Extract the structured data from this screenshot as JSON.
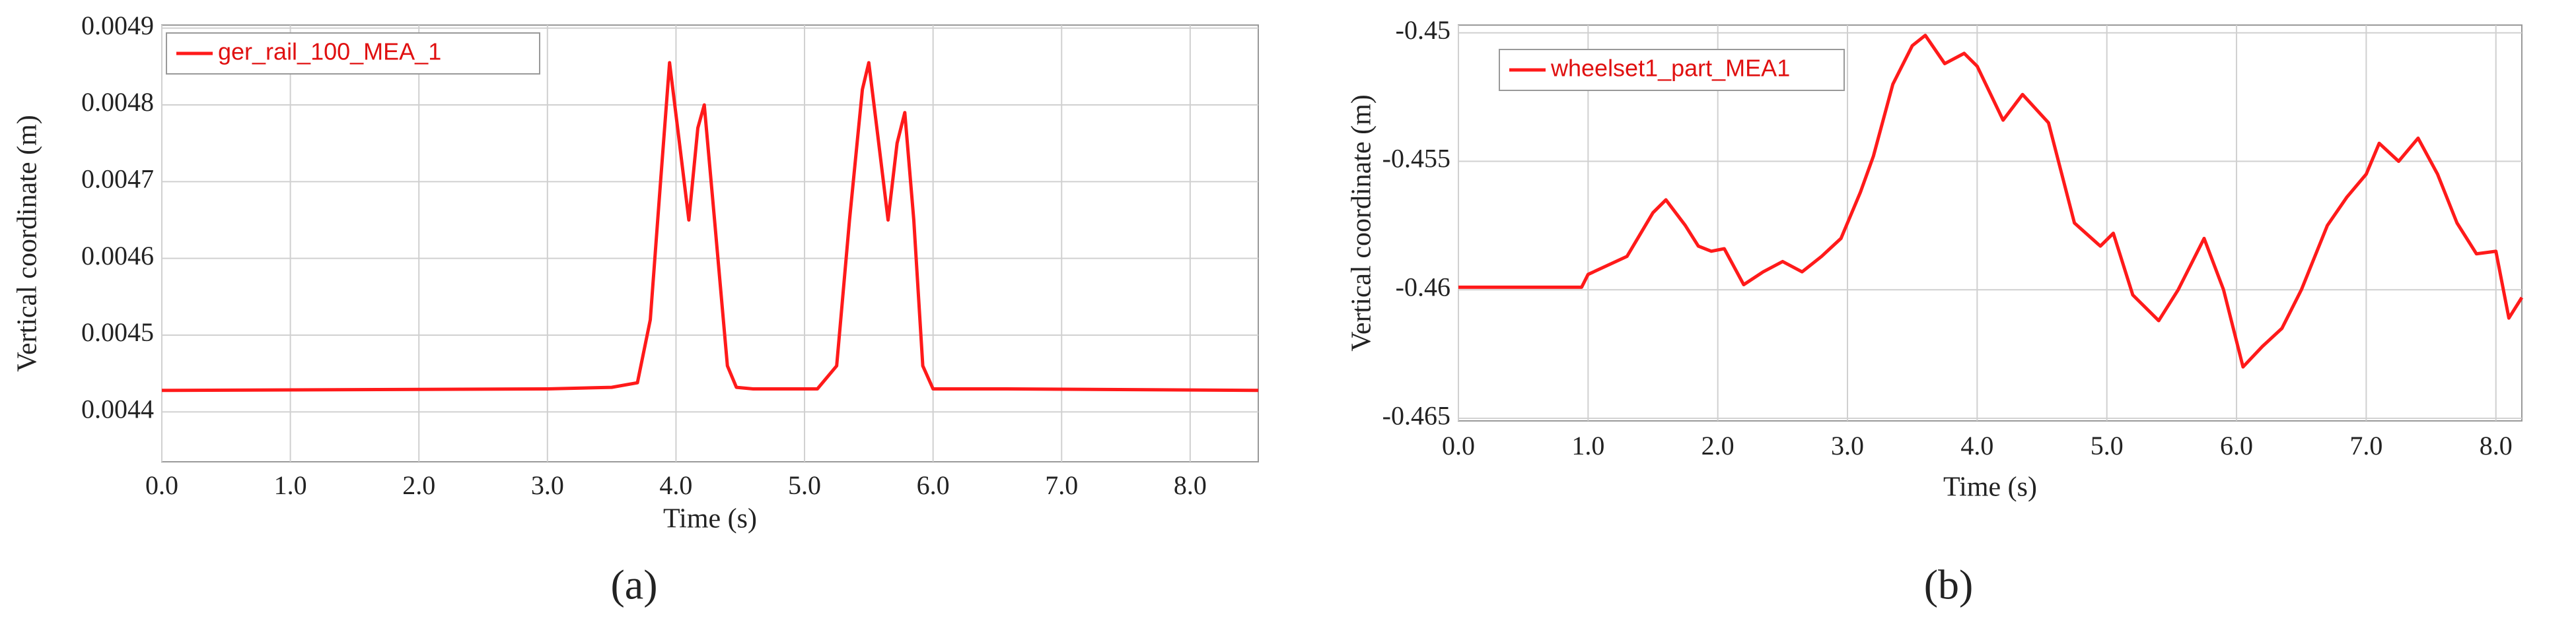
{
  "chart_data": [
    {
      "type": "line",
      "caption": "(a)",
      "x_label": "Time (s)",
      "y_label": "Vertical coordinate (m)",
      "xlim": [
        0,
        8.53
      ],
      "ylim": [
        0.004335,
        0.004904
      ],
      "grid": true,
      "legend": "top-left",
      "xticks": [
        {
          "value": 0,
          "label": "0.0"
        },
        {
          "value": 1,
          "label": "1.0"
        },
        {
          "value": 2,
          "label": "2.0"
        },
        {
          "value": 3,
          "label": "3.0"
        },
        {
          "value": 4,
          "label": "4.0"
        },
        {
          "value": 5,
          "label": "5.0"
        },
        {
          "value": 6,
          "label": "6.0"
        },
        {
          "value": 7,
          "label": "7.0"
        },
        {
          "value": 8,
          "label": "8.0"
        }
      ],
      "yticks": [
        0.0044,
        0.0045,
        0.0046,
        0.0047,
        0.0048,
        0.0049
      ],
      "x": [
        0,
        3.0,
        3.5,
        3.7,
        3.8,
        3.88,
        3.95,
        4.02,
        4.1,
        4.17,
        4.22,
        4.3,
        4.4,
        4.47,
        4.6,
        4.9,
        5.1,
        5.25,
        5.35,
        5.45,
        5.5,
        5.57,
        5.65,
        5.72,
        5.78,
        5.85,
        5.92,
        6.0,
        6.5,
        8.53
      ],
      "series": [
        {
          "name": "ger_rail_100_MEA_1",
          "color": "#ff1a1a",
          "values": [
            0.004428,
            0.00443,
            0.004432,
            0.004438,
            0.00452,
            0.0047,
            0.004855,
            0.00476,
            0.00465,
            0.00477,
            0.0048,
            0.00465,
            0.00446,
            0.004432,
            0.00443,
            0.00443,
            0.00443,
            0.00446,
            0.00465,
            0.00482,
            0.004855,
            0.00476,
            0.00465,
            0.00475,
            0.00479,
            0.00465,
            0.00446,
            0.00443,
            0.00443,
            0.004428
          ]
        }
      ]
    },
    {
      "type": "line",
      "caption": "(b)",
      "x_label": "Time (s)",
      "y_label": "Vertical coordinate (m)",
      "xlim": [
        0,
        8.2
      ],
      "ylim": [
        -0.4651,
        -0.4497
      ],
      "grid": true,
      "legend": "top-left",
      "xticks": [
        {
          "value": 0,
          "label": "0.0"
        },
        {
          "value": 1,
          "label": "1.0"
        },
        {
          "value": 2,
          "label": "2.0"
        },
        {
          "value": 3,
          "label": "3.0"
        },
        {
          "value": 4,
          "label": "4.0"
        },
        {
          "value": 5,
          "label": "5.0"
        },
        {
          "value": 6,
          "label": "6.0"
        },
        {
          "value": 7,
          "label": "7.0"
        },
        {
          "value": 8,
          "label": "8.0"
        }
      ],
      "yticks": [
        -0.465,
        -0.46,
        -0.455,
        -0.45
      ],
      "x": [
        0,
        0.95,
        1.0,
        1.3,
        1.5,
        1.6,
        1.75,
        1.85,
        1.95,
        2.05,
        2.2,
        2.35,
        2.5,
        2.65,
        2.8,
        2.95,
        3.1,
        3.2,
        3.35,
        3.5,
        3.6,
        3.75,
        3.9,
        4.0,
        4.2,
        4.35,
        4.55,
        4.75,
        4.95,
        5.05,
        5.2,
        5.4,
        5.55,
        5.75,
        5.9,
        6.05,
        6.2,
        6.35,
        6.5,
        6.7,
        6.85,
        7.0,
        7.1,
        7.25,
        7.4,
        7.55,
        7.7,
        7.85,
        8.0,
        8.1,
        8.2
      ],
      "series": [
        {
          "name": "wheelset1_part_MEA1",
          "color": "#ff1a1a",
          "values": [
            -0.4599,
            -0.4599,
            -0.4594,
            -0.4587,
            -0.457,
            -0.4565,
            -0.4575,
            -0.4583,
            -0.4585,
            -0.4584,
            -0.4598,
            -0.4593,
            -0.4589,
            -0.4593,
            -0.4587,
            -0.458,
            -0.4562,
            -0.4548,
            -0.452,
            -0.4505,
            -0.4501,
            -0.4512,
            -0.4508,
            -0.4513,
            -0.4534,
            -0.4524,
            -0.4535,
            -0.4574,
            -0.4583,
            -0.4578,
            -0.4602,
            -0.4612,
            -0.46,
            -0.458,
            -0.46,
            -0.463,
            -0.4622,
            -0.4615,
            -0.46,
            -0.4575,
            -0.4564,
            -0.4555,
            -0.4543,
            -0.455,
            -0.4541,
            -0.4555,
            -0.4574,
            -0.4586,
            -0.4585,
            -0.4611,
            -0.4603
          ]
        }
      ]
    }
  ]
}
